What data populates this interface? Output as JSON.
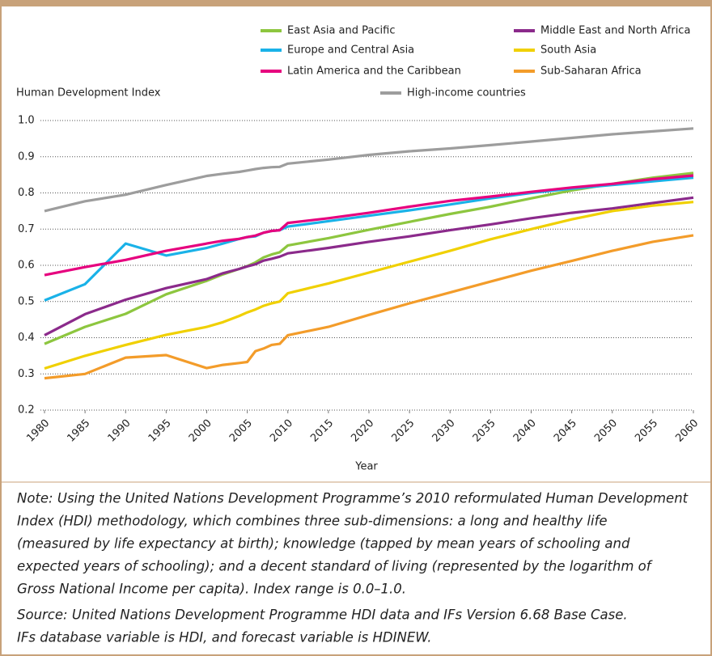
{
  "chart_data": {
    "type": "line",
    "y_label": "Human Development Index",
    "x_label": "Year",
    "x": [
      1980,
      1985,
      1990,
      1995,
      2000,
      2002,
      2004,
      2005,
      2006,
      2007,
      2008,
      2009,
      2010,
      2015,
      2020,
      2025,
      2030,
      2035,
      2040,
      2045,
      2050,
      2055,
      2060
    ],
    "series": [
      {
        "name": "East Asia and Pacific",
        "color": "#8dc63f",
        "values": [
          0.383,
          0.43,
          0.466,
          0.52,
          0.557,
          0.575,
          0.59,
          0.598,
          0.608,
          0.622,
          0.63,
          0.636,
          0.655,
          0.675,
          0.698,
          0.72,
          0.742,
          0.762,
          0.785,
          0.807,
          0.825,
          0.842,
          0.855
        ]
      },
      {
        "name": "Europe and Central Asia",
        "color": "#1ab2e8",
        "values": [
          0.503,
          0.548,
          0.66,
          0.627,
          0.648,
          0.66,
          0.673,
          0.678,
          0.68,
          0.69,
          0.695,
          0.697,
          0.707,
          0.722,
          0.737,
          0.752,
          0.768,
          0.785,
          0.8,
          0.812,
          0.822,
          0.832,
          0.842
        ]
      },
      {
        "name": "Latin America and the Caribbean",
        "color": "#e6007e",
        "values": [
          0.573,
          0.595,
          0.615,
          0.64,
          0.66,
          0.668,
          0.673,
          0.678,
          0.682,
          0.69,
          0.695,
          0.697,
          0.717,
          0.73,
          0.745,
          0.762,
          0.778,
          0.79,
          0.803,
          0.815,
          0.825,
          0.838,
          0.848
        ]
      },
      {
        "name": "Middle East and North Africa",
        "color": "#8b2a8b",
        "values": [
          0.407,
          0.465,
          0.505,
          0.537,
          0.562,
          0.578,
          0.59,
          0.597,
          0.603,
          0.613,
          0.618,
          0.624,
          0.633,
          0.648,
          0.665,
          0.68,
          0.697,
          0.713,
          0.73,
          0.745,
          0.757,
          0.772,
          0.787
        ]
      },
      {
        "name": "South Asia",
        "color": "#f0d000",
        "values": [
          0.315,
          0.35,
          0.38,
          0.408,
          0.43,
          0.443,
          0.46,
          0.47,
          0.478,
          0.488,
          0.495,
          0.5,
          0.523,
          0.55,
          0.58,
          0.61,
          0.64,
          0.672,
          0.7,
          0.727,
          0.75,
          0.765,
          0.775
        ]
      },
      {
        "name": "Sub-Saharan Africa",
        "color": "#f39c2a",
        "values": [
          0.288,
          0.3,
          0.345,
          0.352,
          0.316,
          0.325,
          0.33,
          0.333,
          0.363,
          0.37,
          0.38,
          0.383,
          0.407,
          0.43,
          0.463,
          0.495,
          0.525,
          0.555,
          0.585,
          0.612,
          0.64,
          0.665,
          0.683
        ]
      },
      {
        "name": "High-income countries",
        "color": "#9d9d9d",
        "values": [
          0.75,
          0.777,
          0.795,
          0.822,
          0.847,
          0.853,
          0.858,
          0.862,
          0.866,
          0.869,
          0.871,
          0.872,
          0.881,
          0.892,
          0.905,
          0.915,
          0.923,
          0.932,
          0.942,
          0.952,
          0.962,
          0.97,
          0.978
        ]
      }
    ],
    "xlim": [
      1980,
      2060
    ],
    "xticks": [
      1980,
      1985,
      1990,
      1995,
      2000,
      2005,
      2010,
      2015,
      2020,
      2025,
      2030,
      2035,
      2040,
      2045,
      2050,
      2055,
      2060
    ],
    "ylim": [
      0.2,
      1
    ],
    "yticks": [
      0.2,
      0.3,
      0.4,
      0.5,
      0.6,
      0.7,
      0.8,
      0.9,
      {
        "value": 1,
        "label": "1.0"
      }
    ],
    "grid": true,
    "notes": [
      "Note: Using the United Nations Development Programme’s 2010 reformulated Human Development",
      "Index (HDI) methodology, which combines three sub-dimensions: a long and healthy life",
      "(measured by life expectancy at birth); knowledge (tapped by mean years of schooling and",
      "expected years of schooling); and a decent standard of living (represented by the logarithm of",
      "Gross National Income per capita). Index range is 0.0–1.0."
    ],
    "source": [
      "Source: United Nations Development Programme HDI data and IFs Version 6.68 Base Case.",
      "IFs database variable is HDI, and forecast variable is HDINEW."
    ]
  }
}
